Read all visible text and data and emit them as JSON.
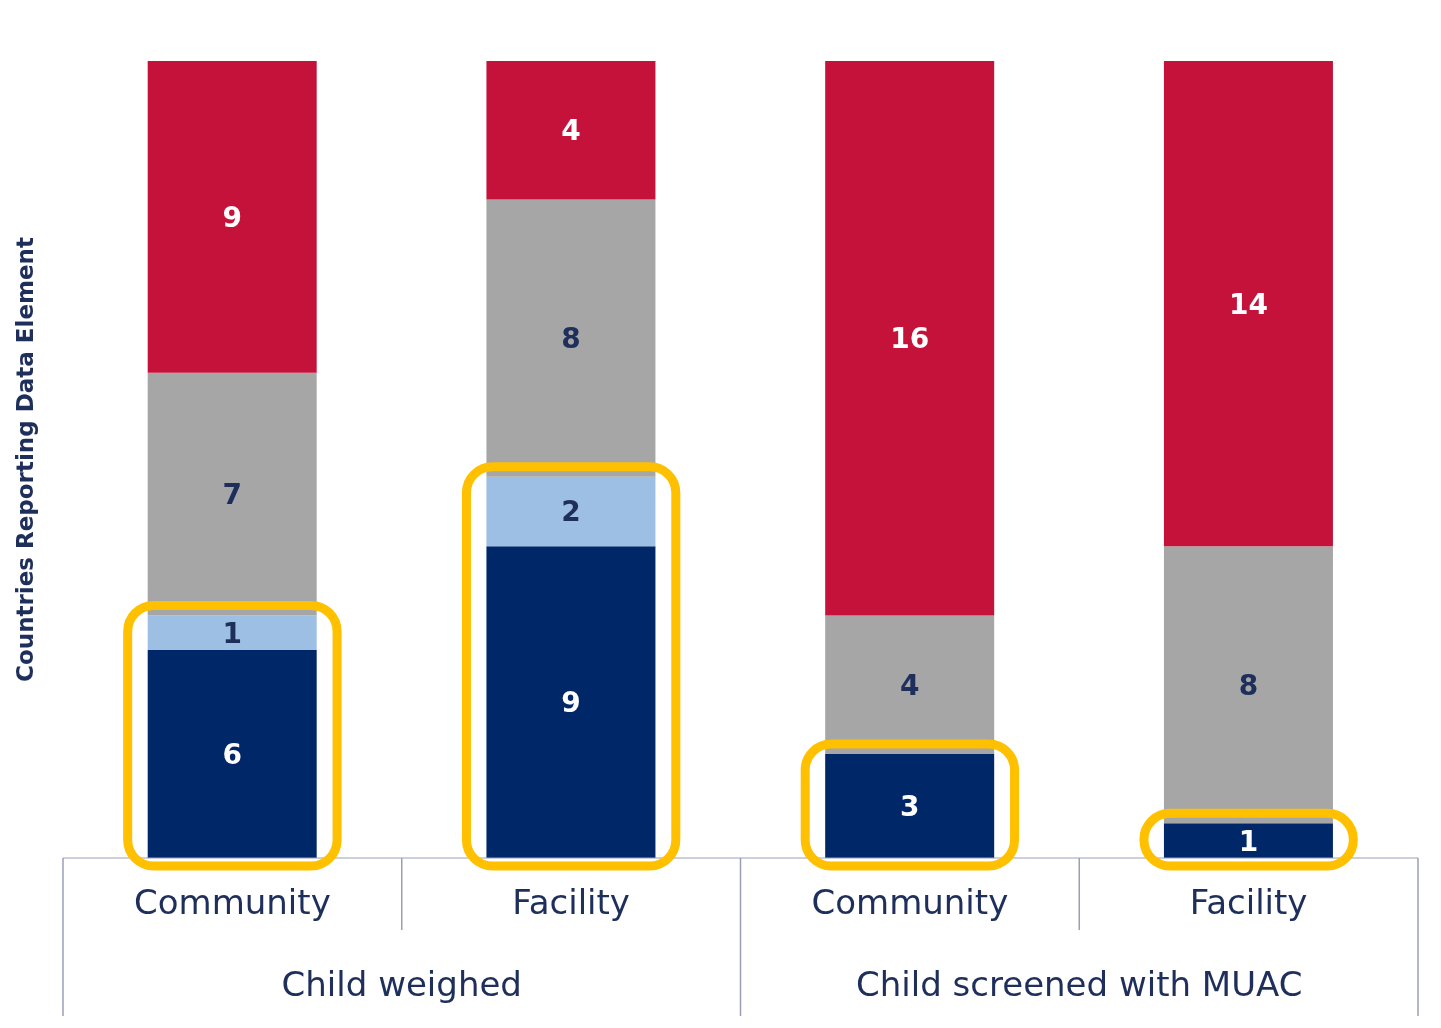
{
  "chart_data": {
    "type": "bar",
    "stacked": true,
    "ylabel": "Countries Reporting Data Element",
    "categories": [
      "Community",
      "Facility",
      "Community",
      "Facility"
    ],
    "series": [
      {
        "color": "#002868",
        "values": [
          6,
          9,
          3,
          1
        ]
      },
      {
        "color": "#9dbfe4",
        "values": [
          1,
          2,
          null,
          null
        ]
      },
      {
        "color": "#a6a6a6",
        "values": [
          7,
          8,
          4,
          8
        ]
      },
      {
        "color": "#c4123a",
        "values": [
          9,
          4,
          16,
          14
        ]
      }
    ],
    "data_labels": true,
    "annotations": [
      "Child weighed",
      "Child screened with MUAC"
    ]
  }
}
